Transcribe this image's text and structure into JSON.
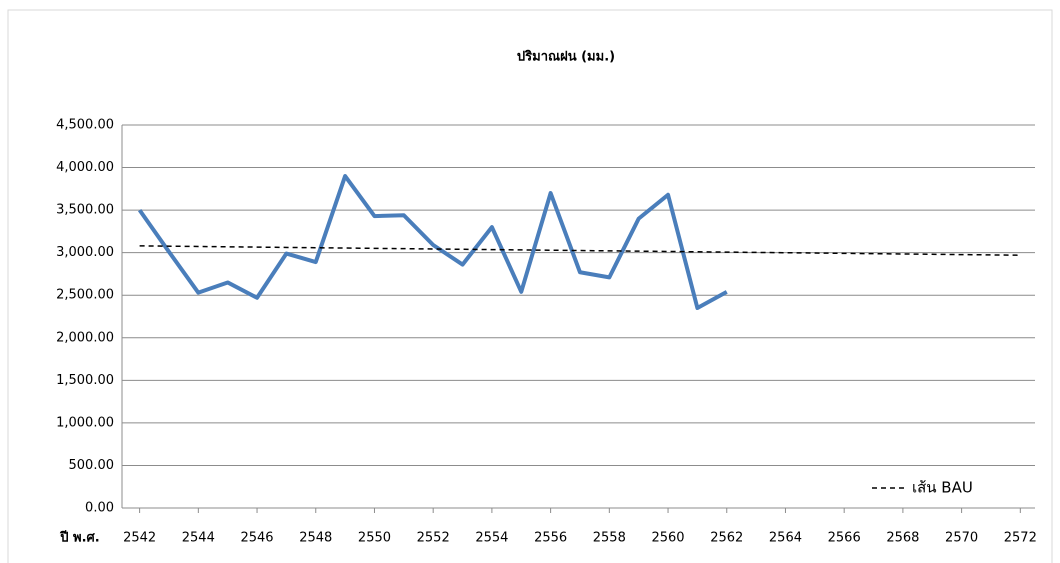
{
  "chart_data": {
    "type": "line",
    "title": "ปริมาณฝน (มม.)",
    "x_label": "ปี พ.ศ.",
    "xlim": [
      2541.4,
      2572.5
    ],
    "xticks": [
      2542,
      2544,
      2546,
      2548,
      2550,
      2552,
      2554,
      2556,
      2558,
      2560,
      2562,
      2564,
      2566,
      2568,
      2570,
      2572
    ],
    "ylim": [
      0,
      4500
    ],
    "yticks": [
      {
        "value": 0,
        "label": "0.00"
      },
      {
        "value": 500,
        "label": "500.00"
      },
      {
        "value": 1000,
        "label": "1,000.00"
      },
      {
        "value": 1500,
        "label": "1,500.00"
      },
      {
        "value": 2000,
        "label": "2,000.00"
      },
      {
        "value": 2500,
        "label": "2,500.00"
      },
      {
        "value": 3000,
        "label": "3,000.00"
      },
      {
        "value": 3500,
        "label": "3,500.00"
      },
      {
        "value": 4000,
        "label": "4,000.00"
      },
      {
        "value": 4500,
        "label": "4,500.00"
      }
    ],
    "grid": true,
    "legend": "lower right",
    "series": [
      {
        "color": "#4a7ebb",
        "dashed": false,
        "x": [
          2542,
          2543,
          2544,
          2545,
          2546,
          2547,
          2548,
          2549,
          2550,
          2551,
          2552,
          2553,
          2554,
          2555,
          2556,
          2557,
          2558,
          2559,
          2560,
          2561,
          2562
        ],
        "values": [
          3500,
          3010,
          2530,
          2650,
          2470,
          2990,
          2890,
          3900,
          3430,
          3440,
          3090,
          2860,
          3300,
          2540,
          3700,
          2770,
          2710,
          3400,
          3680,
          2350,
          2540
        ]
      },
      {
        "name": "เส้น BAU",
        "color": "#000000",
        "dashed": true,
        "x": [
          2542,
          2572
        ],
        "values": [
          3080,
          2970
        ]
      }
    ]
  }
}
